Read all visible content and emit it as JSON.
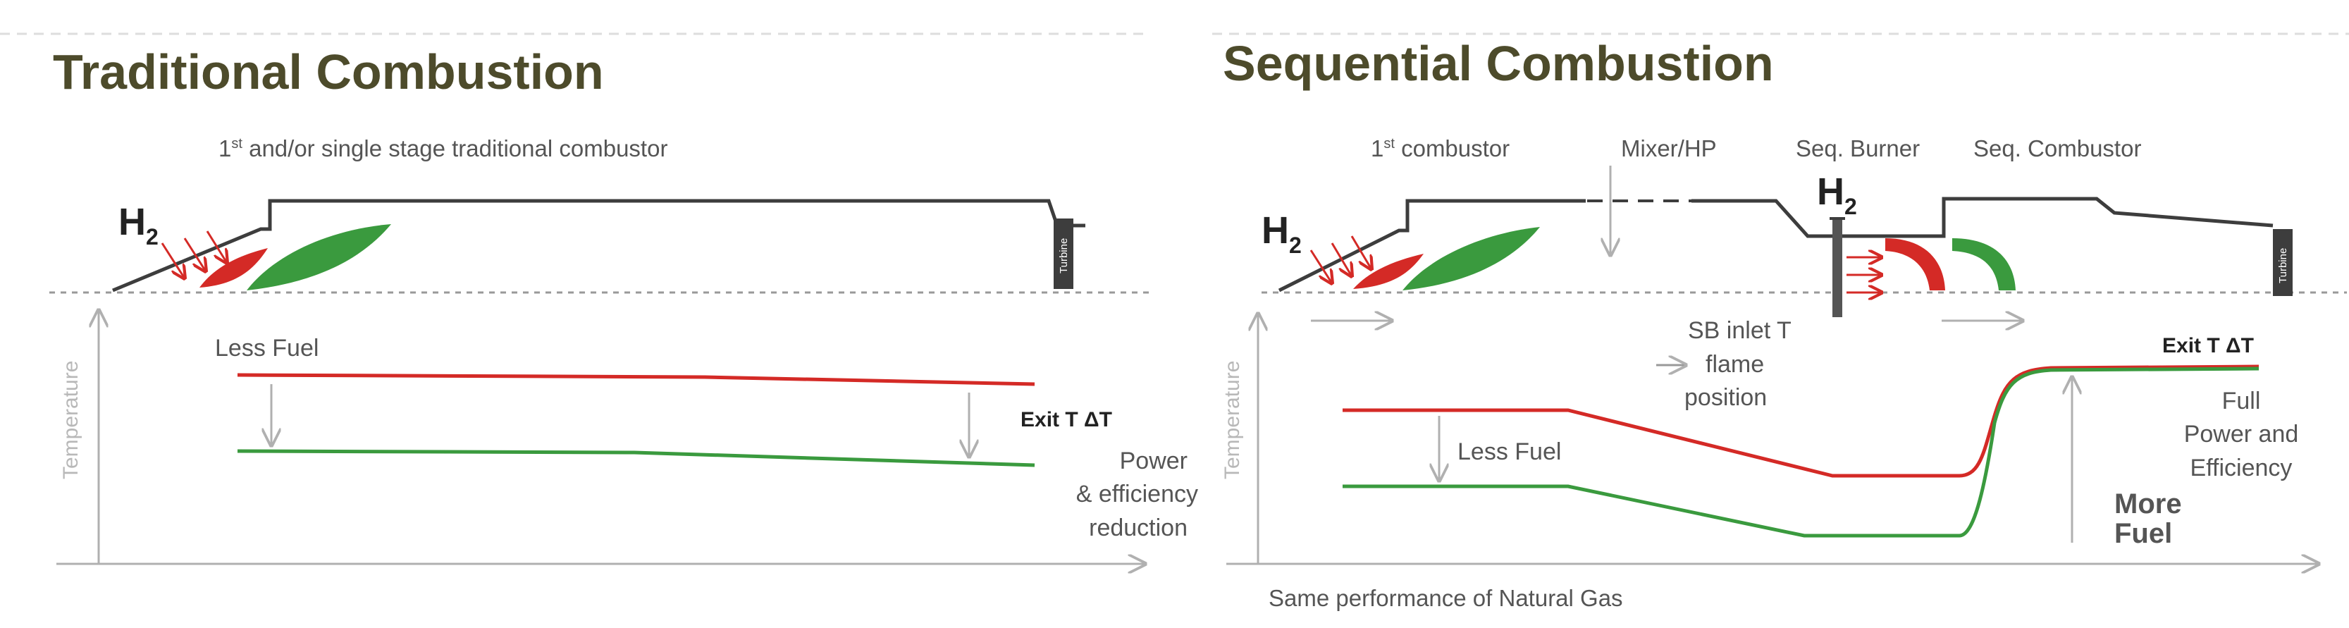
{
  "left": {
    "title": "Traditional Combustion",
    "combustor_label_pre": "1",
    "combustor_label_sup": "st",
    "combustor_label_post": " and/or single stage traditional combustor",
    "h2": "H",
    "h2_sub": "2",
    "turbine": "Turbine",
    "y_axis": "Temperature",
    "less_fuel": "Less Fuel",
    "exit_t": "Exit T ΔT",
    "note_lines": [
      "Power",
      "& efficiency",
      "reduction"
    ]
  },
  "right": {
    "title": "Sequential Combustion",
    "combustor1_pre": "1",
    "combustor1_sup": "st",
    "combustor1_post": " combustor",
    "mixer": "Mixer/HP",
    "seq_burner": "Seq. Burner",
    "seq_combustor": "Seq. Combustor",
    "h2": "H",
    "h2_sub": "2",
    "turbine": "Turbine",
    "y_axis": "Temperature",
    "sb_lines": [
      "SB inlet T",
      "flame",
      "position"
    ],
    "less_fuel": "Less Fuel",
    "exit_t": "Exit T ΔT",
    "full_lines": [
      "Full",
      "Power and",
      "Efficiency"
    ],
    "more_fuel_lines": [
      "More",
      "Fuel"
    ],
    "footer": "Same performance of Natural Gas"
  },
  "colors": {
    "title": "#4d4b2b",
    "red_line": "#d42a26",
    "green_line": "#3a9a3e",
    "outline": "#3d3d3d",
    "arrow": "#b0b0b0"
  }
}
